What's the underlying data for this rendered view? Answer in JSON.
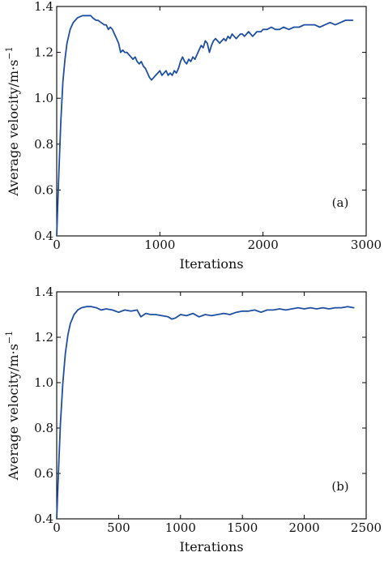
{
  "chart_data": [
    {
      "type": "line",
      "panel_label": "(a)",
      "xlabel": "Iterations",
      "ylabel": "Average velocity/m·s",
      "ylabel_sup": "−1",
      "xlim": [
        0,
        3000
      ],
      "ylim": [
        0.4,
        1.4
      ],
      "x_ticks": [
        0,
        1000,
        2000,
        3000
      ],
      "y_ticks": [
        0.4,
        0.6,
        0.8,
        1.0,
        1.2,
        1.4
      ],
      "x_tick_labels": [
        "0",
        "1000",
        "2000",
        "3000"
      ],
      "y_tick_labels": [
        "0.4",
        "0.6",
        "0.8",
        "1.0",
        "1.2",
        "1.4"
      ],
      "series": [
        {
          "color": "#1f4fa0",
          "x": [
            0,
            20,
            40,
            60,
            80,
            100,
            130,
            160,
            200,
            250,
            300,
            330,
            350,
            380,
            400,
            430,
            460,
            480,
            500,
            520,
            540,
            560,
            580,
            600,
            620,
            640,
            660,
            680,
            700,
            720,
            740,
            760,
            780,
            800,
            820,
            840,
            860,
            880,
            900,
            920,
            940,
            960,
            980,
            1000,
            1020,
            1040,
            1060,
            1080,
            1100,
            1120,
            1140,
            1160,
            1180,
            1200,
            1220,
            1240,
            1260,
            1280,
            1300,
            1320,
            1340,
            1360,
            1380,
            1400,
            1420,
            1440,
            1460,
            1480,
            1500,
            1520,
            1540,
            1560,
            1580,
            1600,
            1620,
            1640,
            1660,
            1680,
            1700,
            1720,
            1740,
            1760,
            1780,
            1800,
            1820,
            1840,
            1860,
            1880,
            1900,
            1920,
            1940,
            1960,
            1980,
            2000,
            2040,
            2080,
            2120,
            2160,
            2200,
            2250,
            2300,
            2350,
            2400,
            2450,
            2500,
            2550,
            2600,
            2650,
            2700,
            2750,
            2800,
            2840,
            2870
          ],
          "y": [
            0.4,
            0.66,
            0.9,
            1.07,
            1.17,
            1.24,
            1.3,
            1.33,
            1.35,
            1.36,
            1.36,
            1.36,
            1.35,
            1.34,
            1.34,
            1.33,
            1.32,
            1.32,
            1.3,
            1.31,
            1.3,
            1.28,
            1.26,
            1.24,
            1.2,
            1.21,
            1.2,
            1.2,
            1.19,
            1.18,
            1.17,
            1.18,
            1.16,
            1.15,
            1.16,
            1.14,
            1.13,
            1.11,
            1.09,
            1.08,
            1.09,
            1.1,
            1.11,
            1.12,
            1.1,
            1.11,
            1.12,
            1.1,
            1.11,
            1.1,
            1.12,
            1.11,
            1.13,
            1.16,
            1.18,
            1.16,
            1.15,
            1.17,
            1.16,
            1.18,
            1.17,
            1.19,
            1.21,
            1.23,
            1.22,
            1.25,
            1.24,
            1.2,
            1.23,
            1.25,
            1.26,
            1.25,
            1.24,
            1.25,
            1.26,
            1.25,
            1.27,
            1.26,
            1.28,
            1.27,
            1.26,
            1.27,
            1.28,
            1.28,
            1.27,
            1.28,
            1.29,
            1.28,
            1.27,
            1.28,
            1.29,
            1.29,
            1.29,
            1.3,
            1.3,
            1.31,
            1.3,
            1.3,
            1.31,
            1.3,
            1.31,
            1.31,
            1.32,
            1.32,
            1.32,
            1.31,
            1.32,
            1.33,
            1.32,
            1.33,
            1.34,
            1.34,
            1.34
          ]
        }
      ]
    },
    {
      "type": "line",
      "panel_label": "(b)",
      "xlabel": "Iterations",
      "ylabel": "Average velocity/m·s",
      "ylabel_sup": "−1",
      "xlim": [
        0,
        2500
      ],
      "ylim": [
        0.4,
        1.4
      ],
      "x_ticks": [
        0,
        500,
        1000,
        1500,
        2000,
        2500
      ],
      "y_ticks": [
        0.4,
        0.6,
        0.8,
        1.0,
        1.2,
        1.4
      ],
      "x_tick_labels": [
        "0",
        "500",
        "1000",
        "1500",
        "2000",
        "2500"
      ],
      "y_tick_labels": [
        "0.4",
        "0.6",
        "0.8",
        "1.0",
        "1.2",
        "1.4"
      ],
      "series": [
        {
          "color": "#1f4fa0",
          "x": [
            0,
            15,
            30,
            50,
            70,
            90,
            110,
            140,
            170,
            200,
            240,
            280,
            320,
            360,
            400,
            450,
            500,
            550,
            600,
            650,
            680,
            720,
            760,
            800,
            850,
            900,
            930,
            960,
            1000,
            1050,
            1100,
            1150,
            1200,
            1250,
            1300,
            1350,
            1400,
            1450,
            1500,
            1550,
            1600,
            1650,
            1700,
            1750,
            1800,
            1850,
            1900,
            1950,
            2000,
            2050,
            2100,
            2150,
            2200,
            2250,
            2300,
            2350,
            2400
          ],
          "y": [
            0.4,
            0.62,
            0.82,
            1.0,
            1.13,
            1.21,
            1.26,
            1.3,
            1.32,
            1.33,
            1.335,
            1.335,
            1.33,
            1.32,
            1.325,
            1.32,
            1.31,
            1.32,
            1.315,
            1.32,
            1.29,
            1.305,
            1.3,
            1.3,
            1.295,
            1.29,
            1.28,
            1.285,
            1.3,
            1.295,
            1.305,
            1.29,
            1.3,
            1.295,
            1.3,
            1.305,
            1.3,
            1.31,
            1.315,
            1.315,
            1.32,
            1.31,
            1.32,
            1.32,
            1.325,
            1.32,
            1.325,
            1.33,
            1.325,
            1.33,
            1.325,
            1.33,
            1.325,
            1.33,
            1.33,
            1.335,
            1.33
          ]
        }
      ]
    }
  ]
}
